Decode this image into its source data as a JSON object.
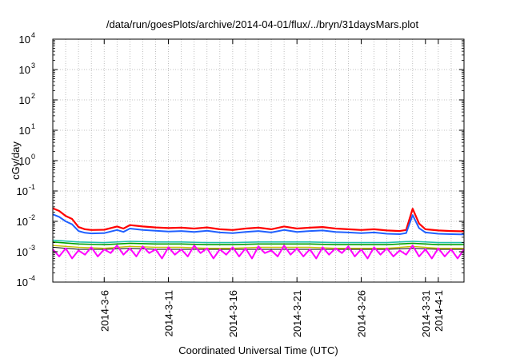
{
  "chart_data": {
    "type": "line",
    "title": "/data/run/goesPlots/archive/2014-04-01/flux/../bryn/31daysMars.plot",
    "xlabel": "Coordinated Universal Time (UTC)",
    "ylabel": "cGy/day",
    "xlim": [
      "2014-03-02",
      "2014-04-03"
    ],
    "ylim": [
      0.0001,
      10000
    ],
    "y_scale": "log",
    "grid": true,
    "legend": "none",
    "x_ticks": [
      {
        "date": "2014-03-06",
        "label": "2014-3-6"
      },
      {
        "date": "2014-03-11",
        "label": "2014-3-11"
      },
      {
        "date": "2014-03-16",
        "label": "2014-3-16"
      },
      {
        "date": "2014-03-21",
        "label": "2014-3-21"
      },
      {
        "date": "2014-03-26",
        "label": "2014-3-26"
      },
      {
        "date": "2014-03-31",
        "label": "2014-3-31"
      },
      {
        "date": "2014-04-01",
        "label": "2014-4-1"
      }
    ],
    "y_ticks": [
      {
        "value": 0.0001,
        "base": "10",
        "exp": "-4"
      },
      {
        "value": 0.001,
        "base": "10",
        "exp": "-3"
      },
      {
        "value": 0.01,
        "base": "10",
        "exp": "-2"
      },
      {
        "value": 0.1,
        "base": "10",
        "exp": "-1"
      },
      {
        "value": 1,
        "base": "10",
        "exp": "0"
      },
      {
        "value": 10,
        "base": "10",
        "exp": "1"
      },
      {
        "value": 100,
        "base": "10",
        "exp": "2"
      },
      {
        "value": 1000,
        "base": "10",
        "exp": "3"
      },
      {
        "value": 10000,
        "base": "10",
        "exp": "4"
      }
    ],
    "series": [
      {
        "color": "#ff0000",
        "width": 2.2,
        "x": [
          "2014-03-02",
          "2014-03-02T12:00",
          "2014-03-03",
          "2014-03-03T12:00",
          "2014-03-04",
          "2014-03-04T12:00",
          "2014-03-05",
          "2014-03-06",
          "2014-03-07",
          "2014-03-07T12:00",
          "2014-03-08",
          "2014-03-09",
          "2014-03-10",
          "2014-03-11",
          "2014-03-12",
          "2014-03-13",
          "2014-03-14",
          "2014-03-15",
          "2014-03-16",
          "2014-03-17",
          "2014-03-18",
          "2014-03-19",
          "2014-03-20",
          "2014-03-21",
          "2014-03-22",
          "2014-03-23",
          "2014-03-24",
          "2014-03-25",
          "2014-03-26",
          "2014-03-27",
          "2014-03-28",
          "2014-03-29",
          "2014-03-29T12:00",
          "2014-03-30",
          "2014-03-30T12:00",
          "2014-03-31",
          "2014-04-01",
          "2014-04-02",
          "2014-04-03"
        ],
        "y": [
          0.027,
          0.022,
          0.015,
          0.012,
          0.0065,
          0.0055,
          0.0052,
          0.0053,
          0.0068,
          0.0058,
          0.0075,
          0.0068,
          0.0063,
          0.006,
          0.0062,
          0.0058,
          0.0063,
          0.0055,
          0.0052,
          0.0058,
          0.0062,
          0.0055,
          0.0068,
          0.0058,
          0.0062,
          0.0065,
          0.0058,
          0.0055,
          0.0052,
          0.0055,
          0.005,
          0.0048,
          0.0052,
          0.026,
          0.0085,
          0.0055,
          0.005,
          0.0048,
          0.0047
        ]
      },
      {
        "color": "#2060ff",
        "width": 2.0,
        "x": [
          "2014-03-02",
          "2014-03-02T12:00",
          "2014-03-03",
          "2014-03-03T12:00",
          "2014-03-04",
          "2014-03-04T12:00",
          "2014-03-05",
          "2014-03-06",
          "2014-03-07",
          "2014-03-07T12:00",
          "2014-03-08",
          "2014-03-09",
          "2014-03-10",
          "2014-03-11",
          "2014-03-12",
          "2014-03-13",
          "2014-03-14",
          "2014-03-15",
          "2014-03-16",
          "2014-03-17",
          "2014-03-18",
          "2014-03-19",
          "2014-03-20",
          "2014-03-21",
          "2014-03-22",
          "2014-03-23",
          "2014-03-24",
          "2014-03-25",
          "2014-03-26",
          "2014-03-27",
          "2014-03-28",
          "2014-03-29",
          "2014-03-29T12:00",
          "2014-03-30",
          "2014-03-30T12:00",
          "2014-03-31",
          "2014-04-01",
          "2014-04-02",
          "2014-04-03"
        ],
        "y": [
          0.017,
          0.014,
          0.01,
          0.008,
          0.0048,
          0.0042,
          0.004,
          0.0041,
          0.0052,
          0.0045,
          0.0058,
          0.0052,
          0.0049,
          0.0046,
          0.0048,
          0.0045,
          0.0049,
          0.0043,
          0.0041,
          0.0045,
          0.0048,
          0.0043,
          0.0052,
          0.0045,
          0.0048,
          0.005,
          0.0045,
          0.0043,
          0.0041,
          0.0043,
          0.0039,
          0.0038,
          0.0041,
          0.016,
          0.006,
          0.0043,
          0.0039,
          0.0038,
          0.0037
        ]
      },
      {
        "color": "#00a000",
        "width": 1.6,
        "x": [
          "2014-03-02",
          "2014-03-04",
          "2014-03-06",
          "2014-03-08",
          "2014-03-10",
          "2014-03-12",
          "2014-03-14",
          "2014-03-16",
          "2014-03-18",
          "2014-03-20",
          "2014-03-22",
          "2014-03-24",
          "2014-03-26",
          "2014-03-28",
          "2014-03-30",
          "2014-04-01",
          "2014-04-03"
        ],
        "y": [
          0.0021,
          0.0018,
          0.0017,
          0.0019,
          0.0018,
          0.0018,
          0.0017,
          0.0017,
          0.0018,
          0.0018,
          0.0018,
          0.0017,
          0.0017,
          0.0017,
          0.0019,
          0.0017,
          0.0017
        ]
      },
      {
        "color": "#20c0b0",
        "width": 1.6,
        "x": [
          "2014-03-02",
          "2014-03-04",
          "2014-03-06",
          "2014-03-08",
          "2014-03-10",
          "2014-03-12",
          "2014-03-14",
          "2014-03-16",
          "2014-03-18",
          "2014-03-20",
          "2014-03-22",
          "2014-03-24",
          "2014-03-26",
          "2014-03-28",
          "2014-03-30",
          "2014-04-01",
          "2014-04-03"
        ],
        "y": [
          0.0024,
          0.0021,
          0.002,
          0.0022,
          0.0021,
          0.0021,
          0.002,
          0.002,
          0.0021,
          0.0021,
          0.0021,
          0.002,
          0.002,
          0.002,
          0.0022,
          0.002,
          0.002
        ]
      },
      {
        "color": "#c8c000",
        "width": 1.4,
        "x": [
          "2014-03-02",
          "2014-03-04",
          "2014-03-06",
          "2014-03-08",
          "2014-03-10",
          "2014-03-12",
          "2014-03-14",
          "2014-03-16",
          "2014-03-18",
          "2014-03-20",
          "2014-03-22",
          "2014-03-24",
          "2014-03-26",
          "2014-03-28",
          "2014-03-30",
          "2014-04-01",
          "2014-04-03"
        ],
        "y": [
          0.0016,
          0.0014,
          0.0013,
          0.0015,
          0.0014,
          0.0014,
          0.0013,
          0.0013,
          0.0014,
          0.0014,
          0.0014,
          0.0013,
          0.0013,
          0.0013,
          0.0015,
          0.0013,
          0.0013
        ]
      },
      {
        "color": "#000000",
        "width": 1.0,
        "x": [
          "2014-03-02",
          "2014-03-04",
          "2014-03-06",
          "2014-03-08",
          "2014-03-10",
          "2014-03-12",
          "2014-03-14",
          "2014-03-16",
          "2014-03-18",
          "2014-03-20",
          "2014-03-22",
          "2014-03-24",
          "2014-03-26",
          "2014-03-28",
          "2014-03-30",
          "2014-04-01",
          "2014-04-03"
        ],
        "y": [
          0.0014,
          0.0012,
          0.0012,
          0.0013,
          0.0012,
          0.0012,
          0.0012,
          0.0012,
          0.0012,
          0.0012,
          0.0012,
          0.0012,
          0.0012,
          0.0012,
          0.0013,
          0.0012,
          0.0012
        ]
      },
      {
        "color": "#ff00ff",
        "width": 2.0,
        "x": [
          "2014-03-02",
          "2014-03-02T12:00",
          "2014-03-03",
          "2014-03-03T12:00",
          "2014-03-04",
          "2014-03-04T12:00",
          "2014-03-05",
          "2014-03-05T12:00",
          "2014-03-06",
          "2014-03-06T12:00",
          "2014-03-07",
          "2014-03-07T12:00",
          "2014-03-08",
          "2014-03-08T12:00",
          "2014-03-09",
          "2014-03-09T12:00",
          "2014-03-10",
          "2014-03-10T12:00",
          "2014-03-11",
          "2014-03-11T12:00",
          "2014-03-12",
          "2014-03-12T12:00",
          "2014-03-13",
          "2014-03-13T12:00",
          "2014-03-14",
          "2014-03-14T12:00",
          "2014-03-15",
          "2014-03-15T12:00",
          "2014-03-16",
          "2014-03-16T12:00",
          "2014-03-17",
          "2014-03-17T12:00",
          "2014-03-18",
          "2014-03-18T12:00",
          "2014-03-19",
          "2014-03-19T12:00",
          "2014-03-20",
          "2014-03-20T12:00",
          "2014-03-21",
          "2014-03-21T12:00",
          "2014-03-22",
          "2014-03-22T12:00",
          "2014-03-23",
          "2014-03-23T12:00",
          "2014-03-24",
          "2014-03-24T12:00",
          "2014-03-25",
          "2014-03-25T12:00",
          "2014-03-26",
          "2014-03-26T12:00",
          "2014-03-27",
          "2014-03-27T12:00",
          "2014-03-28",
          "2014-03-28T12:00",
          "2014-03-29",
          "2014-03-29T12:00",
          "2014-03-30",
          "2014-03-30T12:00",
          "2014-03-31",
          "2014-03-31T12:00",
          "2014-04-01",
          "2014-04-01T12:00",
          "2014-04-02",
          "2014-04-02T12:00",
          "2014-04-03"
        ],
        "y": [
          0.0012,
          0.0007,
          0.0013,
          0.0006,
          0.0011,
          0.0008,
          0.0014,
          0.0007,
          0.0012,
          0.0009,
          0.0016,
          0.0008,
          0.0013,
          0.0007,
          0.0015,
          0.0009,
          0.0012,
          0.0006,
          0.0014,
          0.0008,
          0.0012,
          0.0007,
          0.0016,
          0.0009,
          0.0013,
          0.0006,
          0.0012,
          0.0008,
          0.0014,
          0.0007,
          0.0013,
          0.0006,
          0.0015,
          0.0009,
          0.0011,
          0.0007,
          0.0016,
          0.0008,
          0.0013,
          0.0007,
          0.0012,
          0.0006,
          0.0014,
          0.0008,
          0.0013,
          0.0009,
          0.0015,
          0.0007,
          0.0012,
          0.0006,
          0.0014,
          0.0008,
          0.0013,
          0.0007,
          0.0011,
          0.0008,
          0.0016,
          0.0007,
          0.0012,
          0.0006,
          0.0013,
          0.0007,
          0.0012,
          0.0006,
          0.0012
        ]
      }
    ]
  }
}
